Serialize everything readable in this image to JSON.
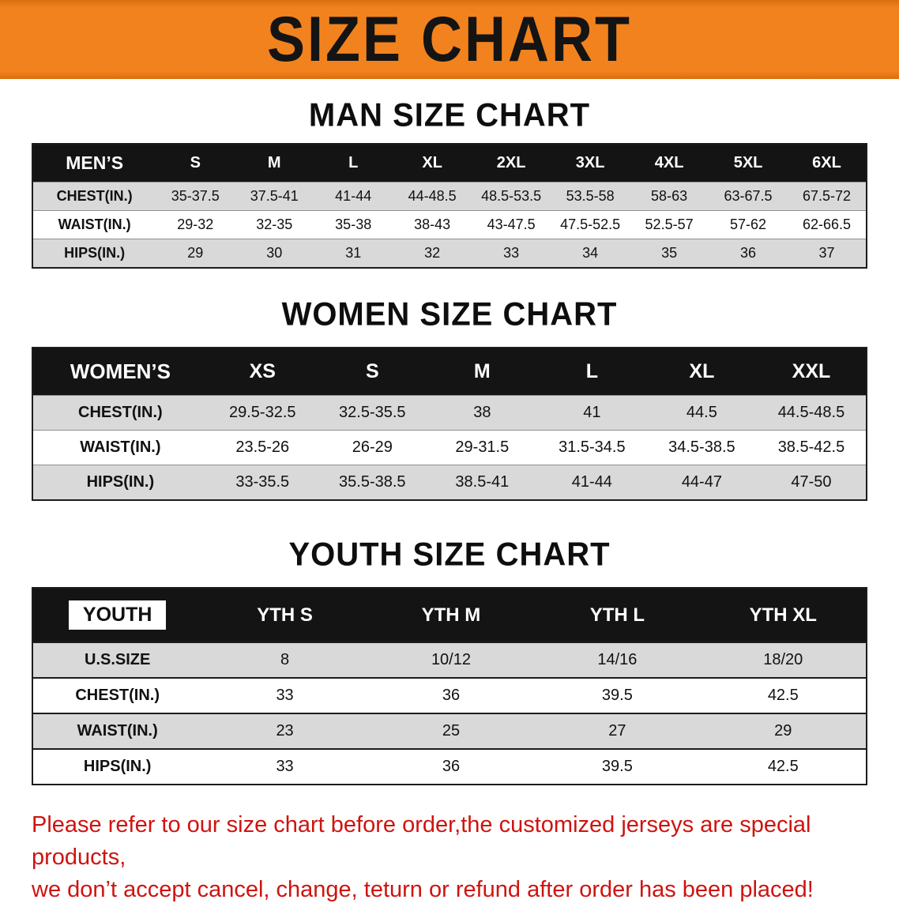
{
  "banner": {
    "title": "SIZE CHART"
  },
  "colors": {
    "banner_bg": "#F2821E",
    "header_bg": "#141414",
    "row_alt_bg": "#D9D9D9",
    "disclaimer_red": "#CE1410"
  },
  "chart_data": [
    {
      "type": "table",
      "title": "MAN SIZE CHART",
      "columns": [
        "MEN’S",
        "S",
        "M",
        "L",
        "XL",
        "2XL",
        "3XL",
        "4XL",
        "5XL",
        "6XL"
      ],
      "rows": [
        [
          "CHEST(IN.)",
          "35-37.5",
          "37.5-41",
          "41-44",
          "44-48.5",
          "48.5-53.5",
          "53.5-58",
          "58-63",
          "63-67.5",
          "67.5-72"
        ],
        [
          "WAIST(IN.)",
          "29-32",
          "32-35",
          "35-38",
          "38-43",
          "43-47.5",
          "47.5-52.5",
          "52.5-57",
          "57-62",
          "62-66.5"
        ],
        [
          "HIPS(IN.)",
          "29",
          "30",
          "31",
          "32",
          "33",
          "34",
          "35",
          "36",
          "37"
        ]
      ]
    },
    {
      "type": "table",
      "title": "WOMEN SIZE CHART",
      "columns": [
        "WOMEN’S",
        "XS",
        "S",
        "M",
        "L",
        "XL",
        "XXL"
      ],
      "rows": [
        [
          "CHEST(IN.)",
          "29.5-32.5",
          "32.5-35.5",
          "38",
          "41",
          "44.5",
          "44.5-48.5"
        ],
        [
          "WAIST(IN.)",
          "23.5-26",
          "26-29",
          "29-31.5",
          "31.5-34.5",
          "34.5-38.5",
          "38.5-42.5"
        ],
        [
          "HIPS(IN.)",
          "33-35.5",
          "35.5-38.5",
          "38.5-41",
          "41-44",
          "44-47",
          "47-50"
        ]
      ]
    },
    {
      "type": "table",
      "title": "YOUTH SIZE CHART",
      "columns": [
        "YOUTH",
        "YTH S",
        "YTH M",
        "YTH L",
        "YTH XL"
      ],
      "rows": [
        [
          "U.S.SIZE",
          "8",
          "10/12",
          "14/16",
          "18/20"
        ],
        [
          "CHEST(IN.)",
          "33",
          "36",
          "39.5",
          "42.5"
        ],
        [
          "WAIST(IN.)",
          "23",
          "25",
          "27",
          "29"
        ],
        [
          "HIPS(IN.)",
          "33",
          "36",
          "39.5",
          "42.5"
        ]
      ]
    }
  ],
  "disclaimer": {
    "line1": "Please refer to our size chart before order,the customized jerseys are special products,",
    "line2": "we don’t accept cancel, change, teturn or refund after order has been placed!"
  }
}
